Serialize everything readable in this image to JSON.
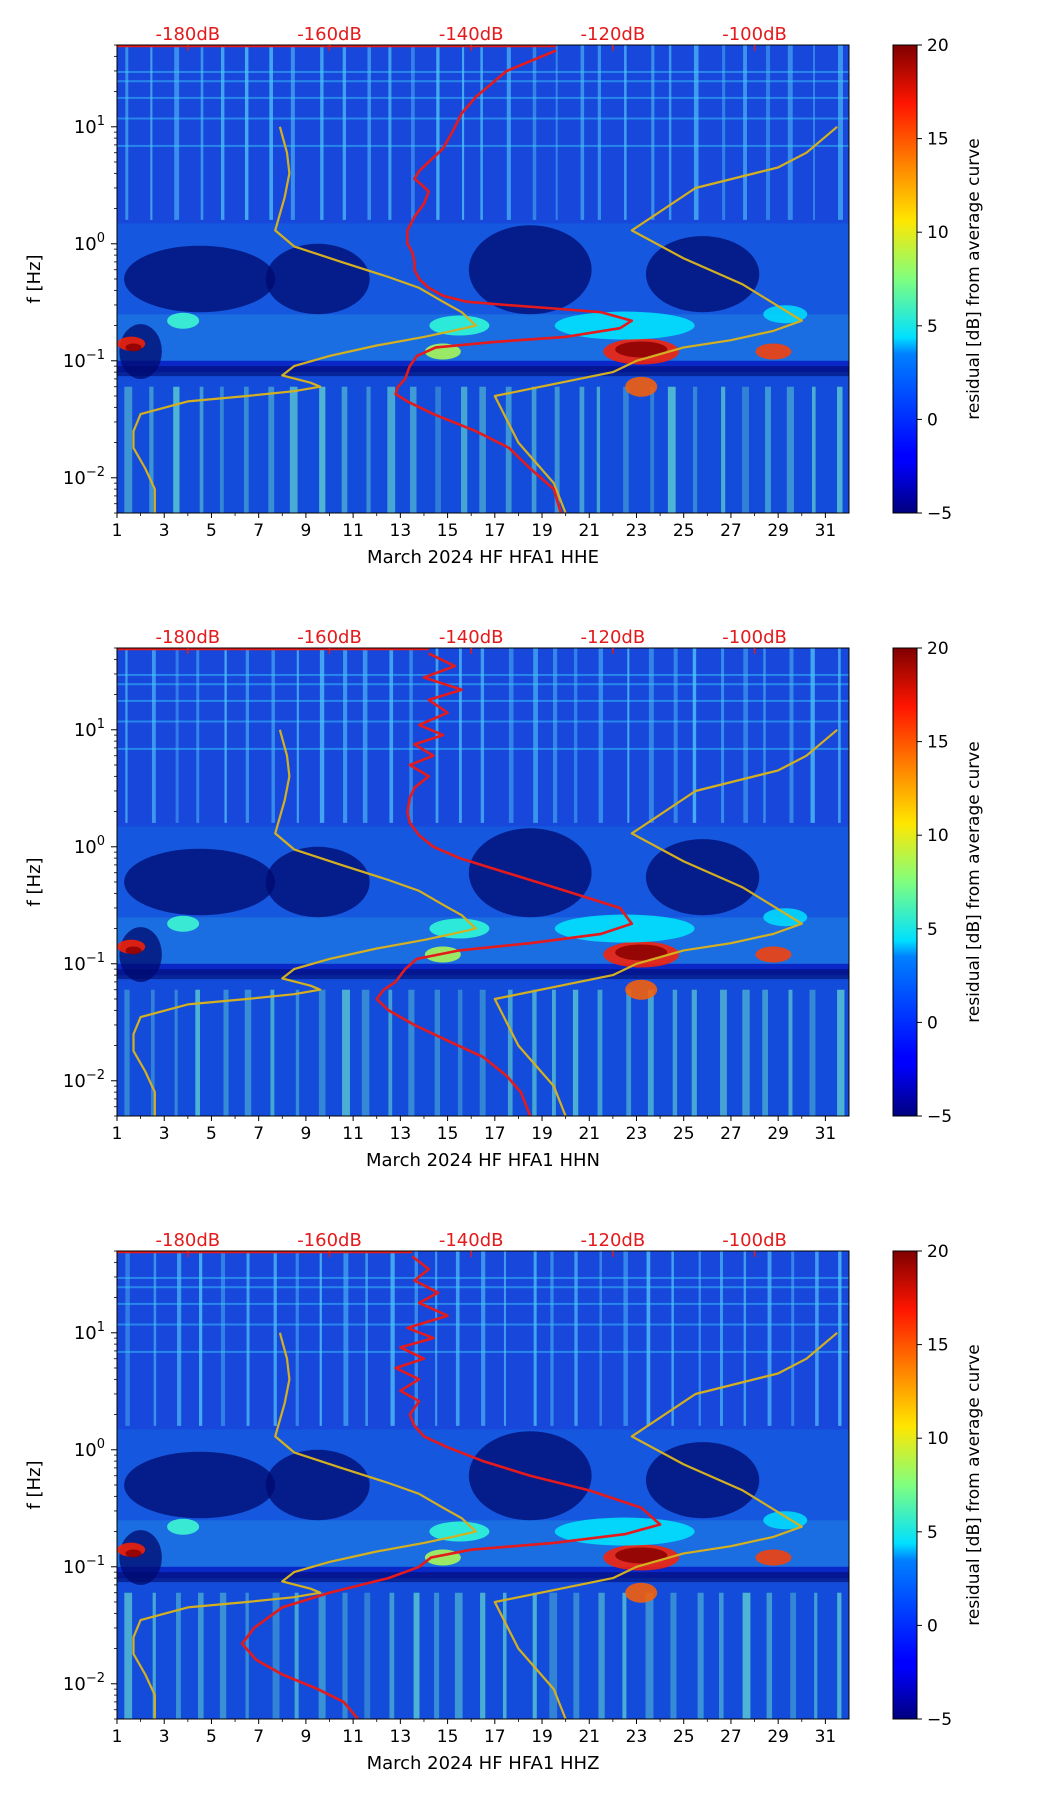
{
  "colorbar": {
    "label": "residual [dB] from average curve",
    "range": [
      -5,
      20
    ],
    "ticks": [
      "20",
      "15",
      "10",
      "5",
      "0",
      "−5"
    ],
    "colormap": "jet"
  },
  "shared_axes": {
    "ylabel": "f [Hz]",
    "y_scale": "log",
    "ylim": [
      0.005,
      50
    ],
    "y_ticks": [
      {
        "base": "10",
        "exp": "1"
      },
      {
        "base": "10",
        "exp": "0"
      },
      {
        "base": "10",
        "exp": "−1"
      },
      {
        "base": "10",
        "exp": "−2"
      }
    ],
    "x_ticks": [
      "1",
      "3",
      "5",
      "7",
      "9",
      "11",
      "13",
      "15",
      "17",
      "19",
      "21",
      "23",
      "25",
      "27",
      "29",
      "31"
    ],
    "xlim": [
      1,
      32
    ],
    "top_ticks": [
      "-180dB",
      "-160dB",
      "-140dB",
      "-120dB",
      "-100dB"
    ],
    "top_ticks_color": "#e41a1c"
  },
  "panels": [
    {
      "xlabel": "March 2024 HF HFA1  HHE"
    },
    {
      "xlabel": "March 2024 HF HFA1  HHN"
    },
    {
      "xlabel": "March 2024 HF HFA1  HHZ"
    }
  ],
  "chart_data": [
    {
      "type": "heatmap",
      "title": "",
      "xlabel": "March 2024 HF HFA1  HHE",
      "ylabel": "f [Hz]",
      "xlim": [
        1,
        32
      ],
      "ylim": [
        0.005,
        50
      ],
      "y_scale": "log",
      "colorbar_label": "residual [dB] from average curve",
      "colorbar_range": [
        -5,
        20
      ],
      "overlay_lines": [
        {
          "color": "#d4b020",
          "x": [
            7.9,
            8.2,
            8.3,
            8.1,
            7.7,
            8.5,
            10.5,
            12.5,
            13.8,
            14.8,
            15.6,
            16.2,
            15.2,
            14.0,
            12.0,
            10.0,
            8.5,
            8.0,
            9.2,
            9.6,
            8.5,
            6.5,
            4.0,
            2.0,
            1.7,
            1.7,
            2.2,
            2.6,
            2.6
          ],
          "y": [
            10,
            6,
            4,
            2.5,
            1.3,
            0.95,
            0.7,
            0.52,
            0.42,
            0.32,
            0.26,
            0.2,
            0.18,
            0.16,
            0.135,
            0.11,
            0.09,
            0.075,
            0.065,
            0.06,
            0.055,
            0.05,
            0.045,
            0.035,
            0.025,
            0.018,
            0.012,
            0.008,
            0.005
          ]
        },
        {
          "color": "#d4b020",
          "x": [
            31.5,
            30.2,
            29.0,
            25.5,
            22.8,
            25.0,
            27.5,
            30.0,
            28.8,
            27.0,
            25.0,
            23.0,
            22.0,
            17.0,
            18.0,
            19.5,
            20.0
          ],
          "y": [
            10,
            6,
            4.5,
            3,
            1.3,
            0.75,
            0.45,
            0.22,
            0.18,
            0.15,
            0.13,
            0.1,
            0.08,
            0.05,
            0.02,
            0.009,
            0.005
          ]
        },
        {
          "color": "#e41a1c",
          "x": [
            19.6,
            17.5,
            16.2,
            15.6,
            15.2,
            14.8,
            14.2,
            13.8,
            13.6,
            13.9,
            14.2,
            14.0,
            13.6,
            13.3,
            13.3,
            13.5,
            13.6,
            13.6,
            13.8,
            14.2,
            14.8,
            15.8,
            17.5,
            19.5,
            21.5,
            22.8,
            22.3,
            20.0,
            17.0,
            14.5,
            13.7,
            13.4,
            13.2,
            12.9,
            12.8,
            13.3,
            14.4,
            16.2,
            17.6,
            18.5,
            19.5,
            19.8
          ],
          "y": [
            45,
            30,
            18,
            13,
            9,
            6.5,
            5,
            4.2,
            3.6,
            3.2,
            2.8,
            2.2,
            1.7,
            1.3,
            1.0,
            0.85,
            0.7,
            0.6,
            0.5,
            0.42,
            0.36,
            0.32,
            0.3,
            0.28,
            0.26,
            0.22,
            0.19,
            0.16,
            0.145,
            0.13,
            0.11,
            0.09,
            0.07,
            0.06,
            0.052,
            0.045,
            0.035,
            0.025,
            0.018,
            0.012,
            0.008,
            0.005
          ]
        }
      ],
      "top_axis": {
        "labels": [
          "-180dB",
          "-160dB",
          "-140dB",
          "-120dB",
          "-100dB"
        ],
        "color": "#e41a1c"
      }
    },
    {
      "type": "heatmap",
      "title": "",
      "xlabel": "March 2024 HF HFA1  HHN",
      "ylabel": "f [Hz]",
      "xlim": [
        1,
        32
      ],
      "ylim": [
        0.005,
        50
      ],
      "y_scale": "log",
      "colorbar_label": "residual [dB] from average curve",
      "colorbar_range": [
        -5,
        20
      ],
      "overlay_lines": [
        {
          "color": "#d4b020",
          "x": [
            7.9,
            8.2,
            8.3,
            8.1,
            7.7,
            8.5,
            10.5,
            12.5,
            13.8,
            14.8,
            15.6,
            16.2,
            15.2,
            14.0,
            12.0,
            10.0,
            8.5,
            8.0,
            9.2,
            9.6,
            8.5,
            6.5,
            4.0,
            2.0,
            1.7,
            1.7,
            2.2,
            2.6,
            2.6
          ],
          "y": [
            10,
            6,
            4,
            2.5,
            1.3,
            0.95,
            0.7,
            0.52,
            0.42,
            0.32,
            0.26,
            0.2,
            0.18,
            0.16,
            0.135,
            0.11,
            0.09,
            0.075,
            0.065,
            0.06,
            0.055,
            0.05,
            0.045,
            0.035,
            0.025,
            0.018,
            0.012,
            0.008,
            0.005
          ]
        },
        {
          "color": "#d4b020",
          "x": [
            31.5,
            30.2,
            29.0,
            25.5,
            22.8,
            25.0,
            27.5,
            30.0,
            28.8,
            27.0,
            25.0,
            23.0,
            22.0,
            17.0,
            18.0,
            19.5,
            20.0
          ],
          "y": [
            10,
            6,
            4.5,
            3,
            1.3,
            0.75,
            0.45,
            0.22,
            0.18,
            0.15,
            0.13,
            0.1,
            0.08,
            0.05,
            0.02,
            0.009,
            0.005
          ]
        },
        {
          "color": "#e41a1c",
          "x": [
            14.2,
            15.3,
            14.0,
            15.6,
            14.2,
            15.0,
            13.8,
            14.8,
            13.6,
            14.4,
            13.4,
            14.2,
            13.6,
            13.4,
            13.3,
            13.4,
            13.8,
            14.4,
            15.5,
            17.5,
            20.0,
            22.3,
            22.8,
            21.5,
            18.5,
            15.5,
            13.7,
            13.2,
            12.8,
            12.3,
            12.0,
            12.5,
            13.6,
            15.0,
            16.5,
            17.5,
            18.1,
            18.5
          ],
          "y": [
            45,
            35,
            28,
            22,
            18,
            14,
            11,
            9,
            7.5,
            6,
            5,
            4,
            3.2,
            2.6,
            2,
            1.6,
            1.25,
            1.0,
            0.8,
            0.6,
            0.42,
            0.3,
            0.22,
            0.18,
            0.15,
            0.13,
            0.11,
            0.09,
            0.07,
            0.06,
            0.05,
            0.04,
            0.03,
            0.022,
            0.016,
            0.011,
            0.008,
            0.005
          ]
        }
      ],
      "top_axis": {
        "labels": [
          "-180dB",
          "-160dB",
          "-140dB",
          "-120dB",
          "-100dB"
        ],
        "color": "#e41a1c"
      }
    },
    {
      "type": "heatmap",
      "title": "",
      "xlabel": "March 2024 HF HFA1  HHZ",
      "ylabel": "f [Hz]",
      "xlim": [
        1,
        32
      ],
      "ylim": [
        0.005,
        50
      ],
      "y_scale": "log",
      "colorbar_label": "residual [dB] from average curve",
      "colorbar_range": [
        -5,
        20
      ],
      "overlay_lines": [
        {
          "color": "#d4b020",
          "x": [
            7.9,
            8.2,
            8.3,
            8.1,
            7.7,
            8.5,
            10.5,
            12.5,
            13.8,
            14.8,
            15.6,
            16.2,
            15.2,
            14.0,
            12.0,
            10.0,
            8.5,
            8.0,
            9.2,
            9.6,
            8.5,
            6.5,
            4.0,
            2.0,
            1.7,
            1.7,
            2.2,
            2.6,
            2.6
          ],
          "y": [
            10,
            6,
            4,
            2.5,
            1.3,
            0.95,
            0.7,
            0.52,
            0.42,
            0.32,
            0.26,
            0.2,
            0.18,
            0.16,
            0.135,
            0.11,
            0.09,
            0.075,
            0.065,
            0.06,
            0.055,
            0.05,
            0.045,
            0.035,
            0.025,
            0.018,
            0.012,
            0.008,
            0.005
          ]
        },
        {
          "color": "#d4b020",
          "x": [
            31.5,
            30.2,
            29.0,
            25.5,
            22.8,
            25.0,
            27.5,
            30.0,
            28.8,
            27.0,
            25.0,
            23.0,
            22.0,
            17.0,
            18.0,
            19.5,
            20.0
          ],
          "y": [
            10,
            6,
            4.5,
            3,
            1.3,
            0.75,
            0.45,
            0.22,
            0.18,
            0.15,
            0.13,
            0.1,
            0.08,
            0.05,
            0.02,
            0.009,
            0.005
          ]
        },
        {
          "color": "#e41a1c",
          "x": [
            13.5,
            14.2,
            13.6,
            14.6,
            13.8,
            15.0,
            13.3,
            14.4,
            13.0,
            14.0,
            12.8,
            13.8,
            13.0,
            13.8,
            13.4,
            13.6,
            14.0,
            15.0,
            16.5,
            18.5,
            21.0,
            23.2,
            24.0,
            22.5,
            19.5,
            16.0,
            14.3,
            13.8,
            12.5,
            10.0,
            8.0,
            6.8,
            6.3,
            6.9,
            8.0,
            9.5,
            10.6,
            11.2
          ],
          "y": [
            45,
            35,
            28,
            22,
            18,
            14,
            11,
            9,
            7.5,
            6,
            5,
            4,
            3.2,
            2.6,
            2,
            1.6,
            1.3,
            1.05,
            0.8,
            0.6,
            0.45,
            0.32,
            0.23,
            0.19,
            0.16,
            0.14,
            0.12,
            0.1,
            0.08,
            0.06,
            0.045,
            0.03,
            0.022,
            0.016,
            0.012,
            0.009,
            0.007,
            0.005
          ]
        }
      ],
      "top_axis": {
        "labels": [
          "-180dB",
          "-160dB",
          "-140dB",
          "-120dB",
          "-100dB"
        ],
        "color": "#e41a1c"
      }
    }
  ]
}
